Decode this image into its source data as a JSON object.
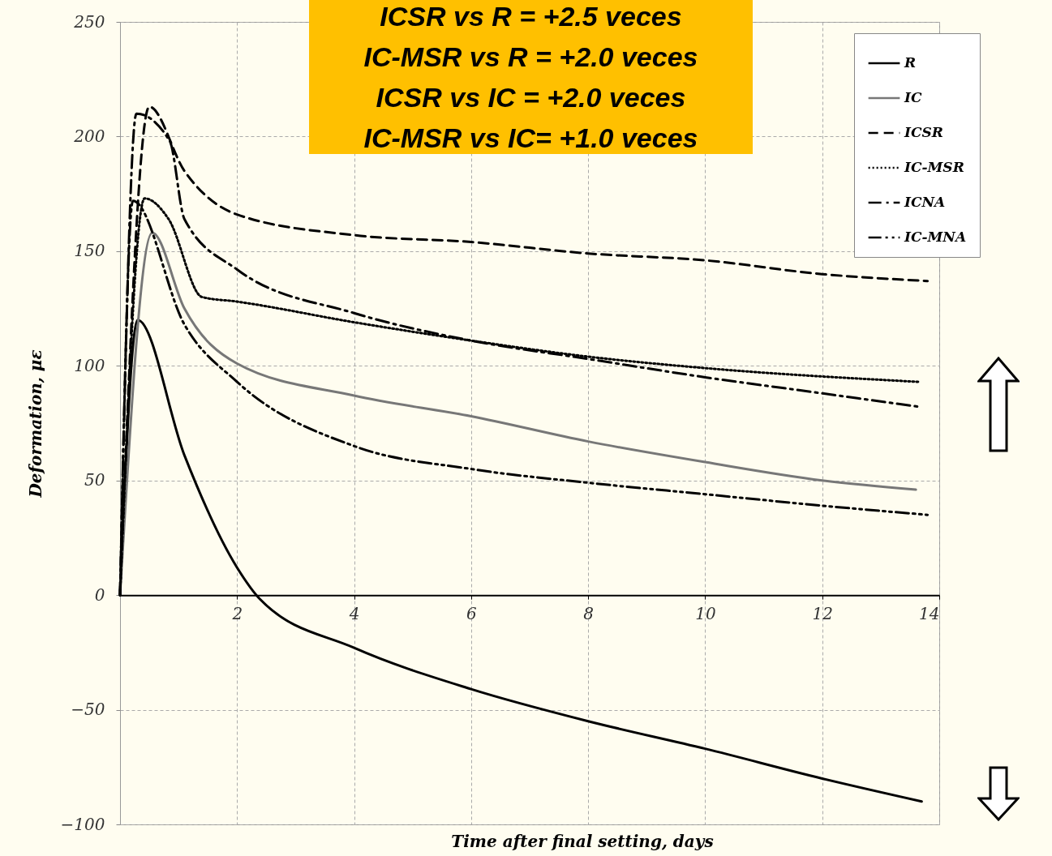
{
  "chart_data": {
    "type": "line",
    "xlabel": "Time after final setting, days",
    "ylabel": "Deformation, με",
    "annotations": [
      "ICSR vs R = +2.5 veces",
      "IC-MSR vs R = +2.0 veces",
      "ICSR vs IC = +2.0 veces",
      "IC-MSR vs IC= +1.0 veces"
    ],
    "xlim": [
      0,
      14
    ],
    "xticks": [
      2,
      4,
      6,
      8,
      10,
      12,
      14
    ],
    "ylim": [
      -100,
      250
    ],
    "yticks": [
      -100,
      -50,
      0,
      50,
      100,
      150,
      200,
      250
    ],
    "grid": true,
    "legend": "top right",
    "series": [
      {
        "name": "R",
        "color": "#000000",
        "line_style": "solid",
        "x": [
          0,
          0.3,
          1.1,
          2,
          2.4,
          4,
          6,
          8,
          10,
          12,
          13.7
        ],
        "values": [
          0,
          120,
          61,
          12,
          -2,
          -23,
          -41,
          -55,
          -67,
          -80,
          -90
        ]
      },
      {
        "name": "IC",
        "color": "#777777",
        "line_style": "solid",
        "x": [
          0,
          0.55,
          1.1,
          2,
          4,
          6,
          8,
          10,
          12,
          13.6
        ],
        "values": [
          0,
          158,
          125,
          101,
          87,
          78,
          67,
          58,
          50,
          46
        ]
      },
      {
        "name": "ICSR",
        "color": "#000000",
        "line_style": "dashed",
        "x": [
          0,
          0.5,
          1.1,
          2,
          4,
          6,
          8,
          10,
          12,
          13.8
        ],
        "values": [
          0,
          213,
          185,
          166,
          157,
          154,
          149,
          146,
          140,
          137
        ]
      },
      {
        "name": "IC-MSR",
        "color": "#000000",
        "line_style": "dotted",
        "x": [
          0,
          0.42,
          0.83,
          1.4,
          2,
          4,
          6,
          8,
          10,
          13.65
        ],
        "values": [
          0,
          173,
          164,
          130,
          128,
          119,
          111,
          104,
          99,
          93
        ]
      },
      {
        "name": "ICNA",
        "color": "#000000",
        "line_style": "dashdot",
        "x": [
          0,
          0.28,
          0.85,
          1.1,
          2,
          4,
          6,
          8,
          10,
          12,
          13.7
        ],
        "values": [
          0,
          210,
          198,
          164,
          142,
          123,
          111,
          103,
          95,
          88,
          82
        ]
      },
      {
        "name": "IC-MNA",
        "color": "#000000",
        "line_style": "dashdotdot",
        "x": [
          0,
          0.22,
          1.1,
          2,
          4,
          6,
          8,
          10,
          12,
          13.8
        ],
        "values": [
          0,
          172,
          118,
          93,
          65,
          55,
          49,
          44,
          39,
          35
        ]
      }
    ]
  }
}
